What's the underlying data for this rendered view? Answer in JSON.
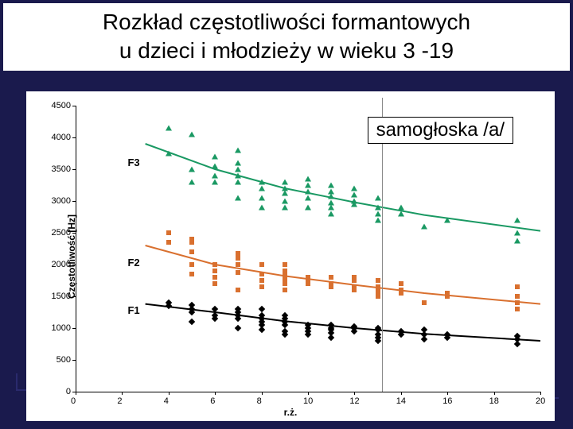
{
  "title_line1": "Rozkład częstotliwości formantowych",
  "title_line2": "u dzieci i młodzieży w wieku 3 -19",
  "subtitle": "samogłoska /a/",
  "xlabel": "r.ż.",
  "ylabel": "Częstotliwość [Hz]",
  "xlim": [
    0,
    20
  ],
  "ylim": [
    0,
    4500
  ],
  "xticks": [
    0,
    2,
    4,
    6,
    8,
    10,
    12,
    14,
    16,
    18,
    20
  ],
  "yticks": [
    0,
    500,
    1000,
    1500,
    2000,
    2500,
    3000,
    3500,
    4000,
    4500
  ],
  "series": {
    "F1": {
      "label": "F1",
      "color": "#000000",
      "marker": "diamond",
      "label_pos": {
        "x": 3.2,
        "y": 1270
      },
      "points": [
        [
          4,
          1400
        ],
        [
          4,
          1350
        ],
        [
          5,
          1360
        ],
        [
          5,
          1300
        ],
        [
          5,
          1250
        ],
        [
          5,
          1100
        ],
        [
          6,
          1150
        ],
        [
          6,
          1200
        ],
        [
          6,
          1300
        ],
        [
          7,
          1250
        ],
        [
          7,
          1200
        ],
        [
          7,
          1300
        ],
        [
          7,
          1150
        ],
        [
          7,
          1000
        ],
        [
          8,
          1300
        ],
        [
          8,
          1200
        ],
        [
          8,
          1150
        ],
        [
          8,
          1100
        ],
        [
          8,
          1050
        ],
        [
          8,
          980
        ],
        [
          9,
          1200
        ],
        [
          9,
          1150
        ],
        [
          9,
          1100
        ],
        [
          9,
          1050
        ],
        [
          9,
          950
        ],
        [
          9,
          900
        ],
        [
          10,
          1050
        ],
        [
          10,
          1000
        ],
        [
          10,
          950
        ],
        [
          10,
          900
        ],
        [
          11,
          1050
        ],
        [
          11,
          1000
        ],
        [
          11,
          980
        ],
        [
          11,
          920
        ],
        [
          11,
          850
        ],
        [
          12,
          1020
        ],
        [
          12,
          1000
        ],
        [
          12,
          950
        ],
        [
          13,
          1000
        ],
        [
          13,
          970
        ],
        [
          13,
          980
        ],
        [
          13,
          900
        ],
        [
          13,
          850
        ],
        [
          13,
          800
        ],
        [
          14,
          950
        ],
        [
          14,
          900
        ],
        [
          15,
          900
        ],
        [
          15,
          820
        ],
        [
          15,
          980
        ],
        [
          16,
          900
        ],
        [
          16,
          850
        ],
        [
          19,
          820
        ],
        [
          19,
          870
        ],
        [
          19,
          750
        ]
      ],
      "fit": [
        [
          3,
          1380
        ],
        [
          6,
          1250
        ],
        [
          9,
          1110
        ],
        [
          12,
          1000
        ],
        [
          15,
          910
        ],
        [
          20,
          800
        ]
      ],
      "line_width": 2
    },
    "F2": {
      "label": "F2",
      "color": "#d9702f",
      "marker": "square",
      "label_pos": {
        "x": 3.2,
        "y": 2030
      },
      "points": [
        [
          4,
          2500
        ],
        [
          4,
          2350
        ],
        [
          5,
          2400
        ],
        [
          5,
          2350
        ],
        [
          5,
          2200
        ],
        [
          5,
          2000
        ],
        [
          5,
          1850
        ],
        [
          6,
          2000
        ],
        [
          6,
          1900
        ],
        [
          6,
          1800
        ],
        [
          6,
          1700
        ],
        [
          7,
          2180
        ],
        [
          7,
          2100
        ],
        [
          7,
          2000
        ],
        [
          7,
          1870
        ],
        [
          7,
          1600
        ],
        [
          8,
          2000
        ],
        [
          8,
          1850
        ],
        [
          8,
          1750
        ],
        [
          8,
          1650
        ],
        [
          9,
          2000
        ],
        [
          9,
          1900
        ],
        [
          9,
          1820
        ],
        [
          9,
          1700
        ],
        [
          9,
          1750
        ],
        [
          9,
          1600
        ],
        [
          10,
          1800
        ],
        [
          10,
          1750
        ],
        [
          10,
          1700
        ],
        [
          11,
          1800
        ],
        [
          11,
          1700
        ],
        [
          11,
          1650
        ],
        [
          12,
          1800
        ],
        [
          12,
          1750
        ],
        [
          12,
          1650
        ],
        [
          12,
          1600
        ],
        [
          13,
          1750
        ],
        [
          13,
          1650
        ],
        [
          13,
          1570
        ],
        [
          13,
          1500
        ],
        [
          14,
          1700
        ],
        [
          14,
          1600
        ],
        [
          14,
          1550
        ],
        [
          15,
          1400
        ],
        [
          16,
          1550
        ],
        [
          16,
          1500
        ],
        [
          19,
          1650
        ],
        [
          19,
          1500
        ],
        [
          19,
          1400
        ],
        [
          19,
          1300
        ]
      ],
      "fit": [
        [
          3,
          2300
        ],
        [
          6,
          2000
        ],
        [
          9,
          1820
        ],
        [
          12,
          1680
        ],
        [
          15,
          1550
        ],
        [
          20,
          1380
        ]
      ],
      "line_width": 2
    },
    "F3": {
      "label": "F3",
      "color": "#1a9963",
      "marker": "triangle",
      "label_pos": {
        "x": 3.2,
        "y": 3600
      },
      "points": [
        [
          4,
          4150
        ],
        [
          4,
          3750
        ],
        [
          5,
          4050
        ],
        [
          5,
          3500
        ],
        [
          5,
          3300
        ],
        [
          6,
          3700
        ],
        [
          6,
          3550
        ],
        [
          6,
          3400
        ],
        [
          6,
          3300
        ],
        [
          7,
          3800
        ],
        [
          7,
          3600
        ],
        [
          7,
          3500
        ],
        [
          7,
          3400
        ],
        [
          7,
          3300
        ],
        [
          7,
          3050
        ],
        [
          8,
          3300
        ],
        [
          8,
          3200
        ],
        [
          8,
          3050
        ],
        [
          8,
          2900
        ],
        [
          9,
          3300
        ],
        [
          9,
          3200
        ],
        [
          9,
          3120
        ],
        [
          9,
          3000
        ],
        [
          9,
          2900
        ],
        [
          10,
          3350
        ],
        [
          10,
          3250
        ],
        [
          10,
          3150
        ],
        [
          10,
          3050
        ],
        [
          10,
          2900
        ],
        [
          11,
          3250
        ],
        [
          11,
          3150
        ],
        [
          11,
          3070
        ],
        [
          11,
          2970
        ],
        [
          11,
          2900
        ],
        [
          11,
          2800
        ],
        [
          12,
          3200
        ],
        [
          12,
          3100
        ],
        [
          12,
          3000
        ],
        [
          12,
          2950
        ],
        [
          13,
          3050
        ],
        [
          13,
          2900
        ],
        [
          13,
          2800
        ],
        [
          13,
          2700
        ],
        [
          14,
          2900
        ],
        [
          14,
          2800
        ],
        [
          15,
          2600
        ],
        [
          16,
          2700
        ],
        [
          19,
          2700
        ],
        [
          19,
          2500
        ],
        [
          19,
          2370
        ]
      ],
      "fit": [
        [
          3,
          3900
        ],
        [
          6,
          3500
        ],
        [
          9,
          3200
        ],
        [
          12,
          2980
        ],
        [
          15,
          2780
        ],
        [
          20,
          2530
        ]
      ],
      "line_width": 2
    }
  },
  "bg_rects": [
    [
      20,
      470,
      22,
      22
    ],
    [
      60,
      490,
      22,
      22
    ],
    [
      300,
      480,
      22,
      22
    ],
    [
      430,
      470,
      22,
      22
    ],
    [
      560,
      490,
      22,
      22
    ],
    [
      680,
      480,
      22,
      22
    ]
  ],
  "subtitle_vline_x": 13.2
}
